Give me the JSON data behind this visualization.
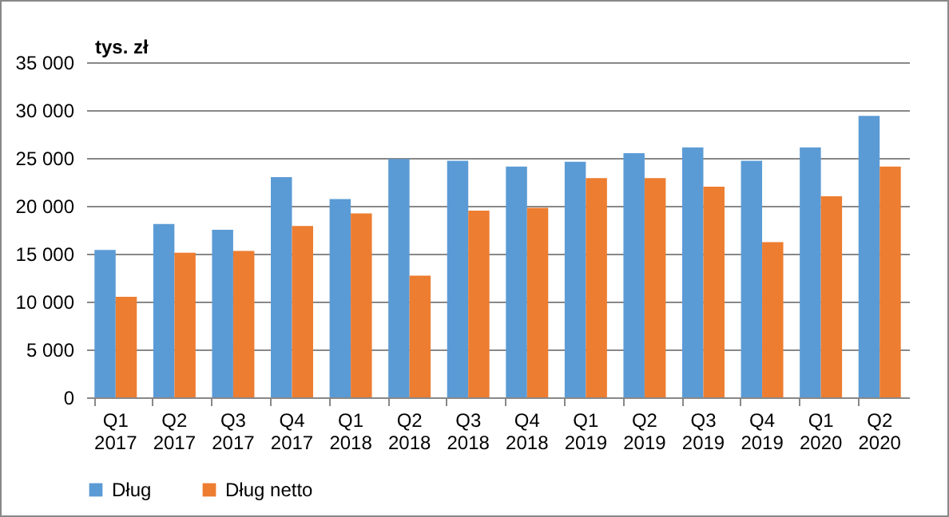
{
  "chart_data": {
    "type": "bar",
    "ylabel": "tys. zł",
    "categories": [
      "Q1 2017",
      "Q2 2017",
      "Q3 2017",
      "Q4 2017",
      "Q1 2018",
      "Q2 2018",
      "Q3 2018",
      "Q4 2018",
      "Q1 2019",
      "Q2 2019",
      "Q3 2019",
      "Q4 2019",
      "Q1 2020",
      "Q2 2020"
    ],
    "series": [
      {
        "name": "Dług",
        "color": "#5b9bd5",
        "values": [
          15400,
          18100,
          17500,
          23000,
          20700,
          24900,
          24700,
          24100,
          24600,
          25500,
          26100,
          24700,
          26100,
          29400
        ]
      },
      {
        "name": "Dług netto",
        "color": "#ed7d31",
        "values": [
          10500,
          15100,
          15300,
          17900,
          19200,
          12700,
          19500,
          19800,
          22900,
          22900,
          22000,
          16200,
          21000,
          24100
        ]
      }
    ],
    "ylim": [
      0,
      35000
    ],
    "yticks": [
      {
        "value": 0,
        "label": "0"
      },
      {
        "value": 5000,
        "label": "5 000"
      },
      {
        "value": 10000,
        "label": "10 000"
      },
      {
        "value": 15000,
        "label": "15 000"
      },
      {
        "value": 20000,
        "label": "20 000"
      },
      {
        "value": 25000,
        "label": "25 000"
      },
      {
        "value": 30000,
        "label": "30 000"
      },
      {
        "value": 35000,
        "label": "35 000"
      }
    ],
    "grid": "y",
    "legend": "bottom"
  }
}
